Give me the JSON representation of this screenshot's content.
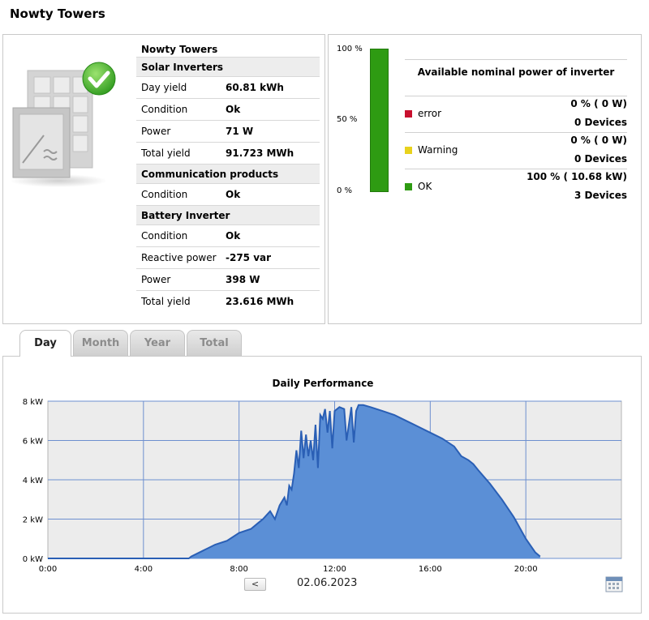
{
  "page_title": "Nowty Towers",
  "plant_info": {
    "plant_name": "Nowty Towers",
    "sections": [
      {
        "heading": "Solar Inverters",
        "rows": [
          {
            "label": "Day yield",
            "value": "60.81 kWh"
          },
          {
            "label": "Condition",
            "value": "Ok"
          },
          {
            "label": "Power",
            "value": "71 W"
          },
          {
            "label": "Total yield",
            "value": "91.723 MWh"
          }
        ]
      },
      {
        "heading": "Communication products",
        "rows": [
          {
            "label": "Condition",
            "value": "Ok"
          }
        ]
      },
      {
        "heading": "Battery Inverter",
        "rows": [
          {
            "label": "Condition",
            "value": "Ok"
          },
          {
            "label": "Reactive power",
            "value": "-275 var"
          },
          {
            "label": "Power",
            "value": "398 W"
          },
          {
            "label": "Total yield",
            "value": "23.616 MWh"
          }
        ]
      }
    ]
  },
  "power_bar": {
    "axis_labels": [
      "100 %",
      "50 %",
      "0 %"
    ],
    "ok_fraction": 1.0,
    "bar_color": "#2e9b12"
  },
  "availability": {
    "title": "Available nominal power of inverter",
    "statuses": [
      {
        "label": "error",
        "percent": "0 %  ( 0 W)",
        "devices": "0 Devices",
        "color": "#c8102e"
      },
      {
        "label": "Warning",
        "percent": "0 %  ( 0 W)",
        "devices": "0 Devices",
        "color": "#e8d21d"
      },
      {
        "label": "OK",
        "percent": "100 %  ( 10.68 kW)",
        "devices": "3 Devices",
        "color": "#2e9b12"
      }
    ]
  },
  "tabs": [
    "Day",
    "Month",
    "Year",
    "Total"
  ],
  "active_tab": "Day",
  "chart": {
    "title": "Daily Performance",
    "date": "02.06.2023",
    "prev_label": "<"
  },
  "chart_data": {
    "type": "area",
    "title": "Daily Performance",
    "xlabel": "",
    "ylabel": "",
    "x_ticks": [
      "0:00",
      "4:00",
      "8:00",
      "12:00",
      "16:00",
      "20:00"
    ],
    "y_ticks": [
      "0 kW",
      "2 kW",
      "4 kW",
      "6 kW",
      "8 kW"
    ],
    "xlim_hours": [
      0,
      24
    ],
    "ylim_kw": [
      0,
      8
    ],
    "grid": true,
    "fill_color": "#5b8fd6",
    "line_color": "#2a5fb5",
    "series": [
      {
        "hours": [
          0,
          5.9,
          6.0,
          6.5,
          7.0,
          7.5,
          8.0,
          8.5,
          8.8,
          9.0,
          9.3,
          9.5,
          9.7,
          9.9,
          10.0,
          10.1,
          10.2,
          10.3,
          10.4,
          10.5,
          10.6,
          10.7,
          10.8,
          10.9,
          11.0,
          11.1,
          11.2,
          11.3,
          11.4,
          11.5,
          11.6,
          11.7,
          11.8,
          11.9,
          12.0,
          12.2,
          12.4,
          12.5,
          12.7,
          12.8,
          12.9,
          13.0,
          13.2,
          13.5,
          14.0,
          14.5,
          15.0,
          15.5,
          16.0,
          16.5,
          17.0,
          17.3,
          17.6,
          17.8,
          18.0,
          18.5,
          19.0,
          19.5,
          20.0,
          20.4,
          20.6
        ],
        "kw": [
          0,
          0,
          0.1,
          0.4,
          0.7,
          0.9,
          1.3,
          1.5,
          1.8,
          2.0,
          2.4,
          2.0,
          2.7,
          3.1,
          2.7,
          3.7,
          3.5,
          4.3,
          5.5,
          4.6,
          6.5,
          5.1,
          6.3,
          5.2,
          6.0,
          5.0,
          6.8,
          4.6,
          7.3,
          7.1,
          7.6,
          6.4,
          7.5,
          5.6,
          7.5,
          7.7,
          7.6,
          6.0,
          7.7,
          5.9,
          7.5,
          7.8,
          7.8,
          7.7,
          7.5,
          7.3,
          7.0,
          6.7,
          6.4,
          6.1,
          5.7,
          5.2,
          5.0,
          4.8,
          4.5,
          3.8,
          3.0,
          2.1,
          1.0,
          0.3,
          0.1
        ]
      }
    ]
  }
}
